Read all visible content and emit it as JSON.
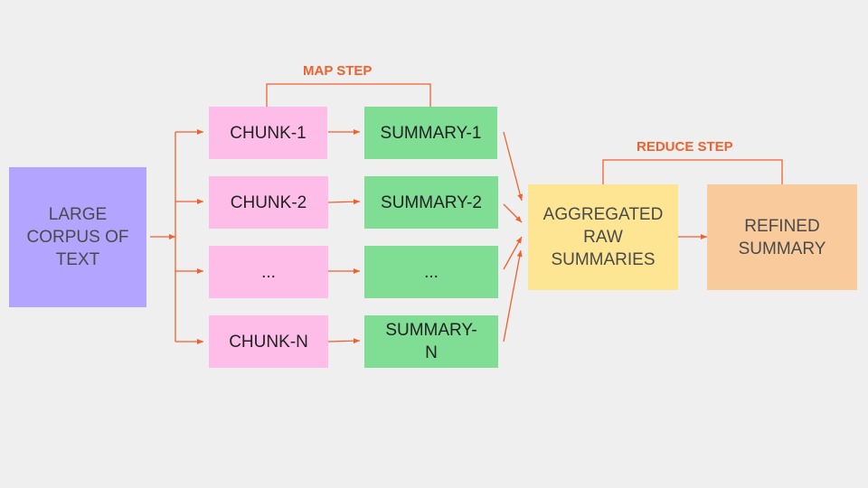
{
  "colors": {
    "background": "#efefef",
    "accent": "#f0622d",
    "corpus_fill": "#b3a5ff",
    "chunk_fill": "#fdbde8",
    "summary_fill": "#7fdd94",
    "aggregated_fill": "#fee594",
    "refined_fill": "#f9cb9c"
  },
  "labels": {
    "map_step": "MAP STEP",
    "reduce_step": "REDUCE STEP"
  },
  "corpus": "LARGE\nCORPUS OF\nTEXT",
  "chunks": [
    "CHUNK-1",
    "CHUNK-2",
    "...",
    "CHUNK-N"
  ],
  "summaries": [
    "SUMMARY-1",
    "SUMMARY-2",
    "...",
    "SUMMARY-\nN"
  ],
  "aggregated": "AGGREGATED\nRAW\nSUMMARIES",
  "refined": "REFINED\nSUMMARY"
}
